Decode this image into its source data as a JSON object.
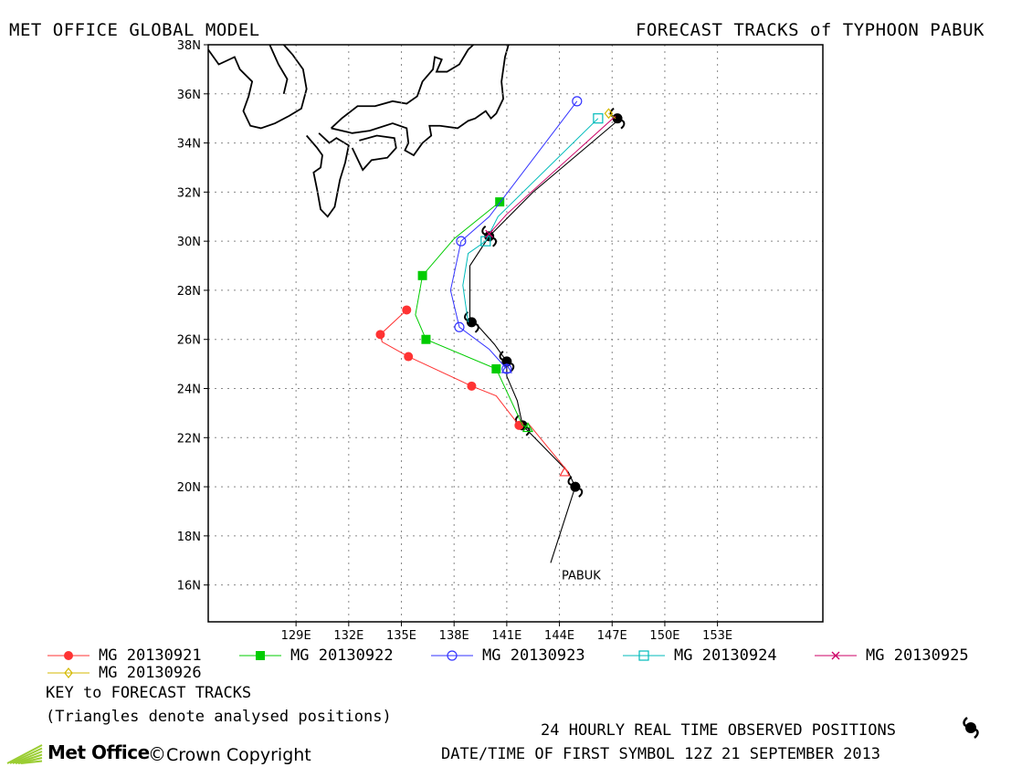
{
  "header": {
    "left": "MET OFFICE GLOBAL MODEL",
    "right": "FORECAST TRACKS of TYPHOON PABUK"
  },
  "chart_data": {
    "type": "line",
    "xlim": [
      124,
      159
    ],
    "ylim": [
      14.5,
      38
    ],
    "x_ticks": [
      129,
      132,
      135,
      138,
      141,
      144,
      147,
      150,
      153
    ],
    "x_tick_labels": [
      "129E",
      "132E",
      "135E",
      "138E",
      "141E",
      "144E",
      "147E",
      "150E",
      "153E"
    ],
    "y_ticks": [
      16,
      18,
      20,
      22,
      24,
      26,
      28,
      30,
      32,
      34,
      36,
      38
    ],
    "y_tick_labels": [
      "16N",
      "18N",
      "20N",
      "22N",
      "24N",
      "26N",
      "28N",
      "30N",
      "32N",
      "34N",
      "36N",
      "38N"
    ],
    "grid": true,
    "storm_label": "PABUK",
    "observed_track": {
      "path": [
        [
          143.5,
          16.9
        ],
        [
          144.9,
          20.0
        ],
        [
          144.5,
          20.6
        ],
        [
          141.9,
          22.5
        ],
        [
          141.6,
          23.5
        ],
        [
          141.0,
          24.5
        ],
        [
          141.0,
          25.1
        ],
        [
          140.3,
          25.8
        ],
        [
          139.3,
          26.6
        ],
        [
          138.9,
          26.9
        ],
        [
          138.9,
          28.0
        ],
        [
          138.9,
          29.0
        ],
        [
          140.0,
          30.2
        ],
        [
          142.5,
          32.0
        ],
        [
          147.3,
          34.9
        ]
      ],
      "symbols": [
        [
          144.9,
          20.0
        ],
        [
          141.9,
          22.5
        ],
        [
          141.0,
          25.1
        ],
        [
          139.0,
          26.7
        ],
        [
          140.0,
          30.2
        ],
        [
          147.3,
          35.0
        ]
      ]
    },
    "series": [
      {
        "name": "MG 20130921",
        "color": "#ff3333",
        "marker": "circle-filled",
        "points": [
          [
            141.7,
            22.5
          ],
          [
            140.4,
            23.7
          ],
          [
            139.0,
            24.1
          ],
          [
            135.4,
            25.3
          ],
          [
            133.9,
            25.9
          ],
          [
            133.8,
            26.2
          ],
          [
            135.3,
            27.2
          ]
        ],
        "marked": [
          [
            141.7,
            22.5
          ],
          [
            139.0,
            24.1
          ],
          [
            135.4,
            25.3
          ],
          [
            133.8,
            26.2
          ],
          [
            135.3,
            27.2
          ]
        ],
        "lead": [
          [
            144.5,
            20.6
          ],
          [
            142.2,
            22.6
          ]
        ]
      },
      {
        "name": "MG 20130922",
        "color": "#00cc00",
        "marker": "square-filled",
        "points": [
          [
            141.9,
            22.5
          ],
          [
            140.4,
            24.8
          ],
          [
            136.4,
            26.0
          ],
          [
            135.8,
            27.0
          ],
          [
            136.2,
            28.6
          ],
          [
            138.0,
            30.1
          ],
          [
            140.6,
            31.6
          ]
        ],
        "marked": [
          [
            140.4,
            24.8
          ],
          [
            136.4,
            26.0
          ],
          [
            136.2,
            28.6
          ],
          [
            140.6,
            31.6
          ]
        ],
        "lead": [
          [
            142.3,
            22.4
          ],
          [
            141.9,
            22.5
          ]
        ]
      },
      {
        "name": "MG 20130923",
        "color": "#3333ff",
        "marker": "circle-open",
        "points": [
          [
            141.0,
            24.8
          ],
          [
            140.0,
            25.6
          ],
          [
            138.3,
            26.5
          ],
          [
            137.8,
            28.0
          ],
          [
            138.4,
            30.0
          ],
          [
            140.0,
            31.0
          ],
          [
            145.0,
            35.7
          ]
        ],
        "marked": [
          [
            141.0,
            24.8
          ],
          [
            138.3,
            26.5
          ],
          [
            138.4,
            30.0
          ],
          [
            145.0,
            35.7
          ]
        ],
        "lead": []
      },
      {
        "name": "MG 20130924",
        "color": "#00bbbb",
        "marker": "square-open",
        "points": [
          [
            138.8,
            26.7
          ],
          [
            138.5,
            28.2
          ],
          [
            138.8,
            29.5
          ],
          [
            139.8,
            30.0
          ],
          [
            140.5,
            31.0
          ],
          [
            146.2,
            35.0
          ]
        ],
        "marked": [
          [
            139.8,
            30.0
          ],
          [
            146.2,
            35.0
          ]
        ],
        "lead": []
      },
      {
        "name": "MG 20130925",
        "color": "#cc0066",
        "marker": "x",
        "points": [
          [
            140.0,
            30.3
          ],
          [
            141.0,
            31.1
          ],
          [
            147.2,
            35.1
          ]
        ],
        "marked": [
          [
            140.0,
            30.3
          ]
        ],
        "lead": []
      },
      {
        "name": "MG 20130926",
        "color": "#d4b800",
        "marker": "diamond-open",
        "points": [
          [
            146.8,
            35.2
          ],
          [
            147.2,
            35.0
          ]
        ],
        "marked": [
          [
            146.8,
            35.2
          ]
        ],
        "lead": []
      }
    ],
    "analysed_triangles": [
      {
        "color": "#00cc00",
        "at": [
          142.2,
          22.4
        ]
      },
      {
        "color": "#3333ff",
        "at": [
          141.0,
          24.8
        ]
      },
      {
        "color": "#ff3333",
        "at": [
          144.3,
          20.6
        ]
      }
    ]
  },
  "legend": {
    "entries": [
      {
        "label": "MG 20130921",
        "color": "#ff3333",
        "marker": "circle-filled"
      },
      {
        "label": "MG 20130922",
        "color": "#00cc00",
        "marker": "square-filled"
      },
      {
        "label": "MG 20130923",
        "color": "#3333ff",
        "marker": "circle-open"
      },
      {
        "label": "MG 20130924",
        "color": "#00bbbb",
        "marker": "square-open"
      },
      {
        "label": "MG 20130925",
        "color": "#cc0066",
        "marker": "x"
      },
      {
        "label": "MG 20130926",
        "color": "#d4b800",
        "marker": "diamond-open"
      }
    ],
    "key_title": "KEY to FORECAST TRACKS",
    "key_note": "(Triangles denote analysed positions)"
  },
  "footer": {
    "observed_note": "24 HOURLY REAL TIME OBSERVED POSITIONS",
    "first_symbol": "DATE/TIME OF FIRST SYMBOL 12Z 21 SEPTEMBER 2013",
    "logo_text": "Met Office",
    "copyright": "Crown Copyright",
    "logo_color": "#9acd32"
  }
}
